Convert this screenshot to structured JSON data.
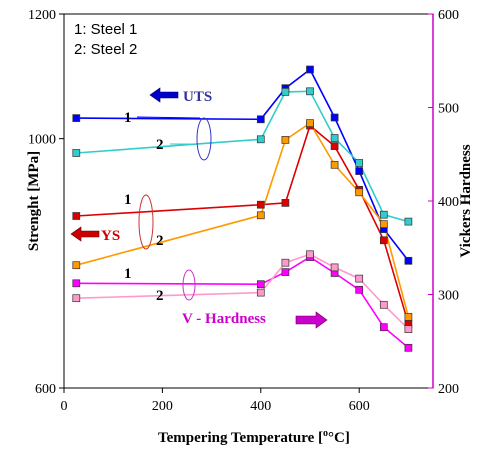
{
  "chart_data": {
    "type": "line",
    "xlabel": "Tempering Temperature [",
    "xlabel_unit": "°C]",
    "ylabel": "Strenght [MPa]",
    "y2label": "Vickers Hardness",
    "xlim": [
      0,
      750
    ],
    "ylim": [
      600,
      1200
    ],
    "y2lim": [
      200,
      600
    ],
    "xticks": [
      "0",
      "200",
      "400",
      "600"
    ],
    "yticks": [
      "600",
      "1000",
      "1200"
    ],
    "y2ticks": [
      "200",
      "300",
      "400",
      "500",
      "600"
    ],
    "legend": {
      "line1": "1: Steel 1",
      "line2": "2: Steel 2"
    },
    "annotations": {
      "uts": "UTS",
      "ys": "YS",
      "hardness": "V - Hardness",
      "uts_1": "1",
      "uts_2": "2",
      "ys_1": "1",
      "ys_2": "2",
      "hv_1": "1",
      "hv_2": "2"
    },
    "series": [
      {
        "key": "uts1",
        "name": "UTS Steel 1",
        "axis": "left",
        "color": "#0000ff",
        "marker_fill": "#0000ff",
        "x": [
          25,
          400,
          450,
          500,
          550,
          600,
          650,
          700
        ],
        "y": [
          1033,
          1031,
          1081,
          1111,
          1034,
          948,
          855,
          804
        ]
      },
      {
        "key": "uts2",
        "name": "UTS Steel 2",
        "axis": "left",
        "color": "#33cccc",
        "marker_fill": "#33cccc",
        "x": [
          25,
          400,
          450,
          500,
          550,
          600,
          650,
          700
        ],
        "y": [
          977,
          999,
          1075,
          1076,
          1001,
          961,
          878,
          867
        ]
      },
      {
        "key": "ys1",
        "name": "YS Steel 1",
        "axis": "left",
        "color": "#dd0000",
        "marker_fill": "#dd0000",
        "x": [
          25,
          400,
          450,
          500,
          550,
          600,
          650,
          700
        ],
        "y": [
          876,
          894,
          897,
          1021,
          988,
          918,
          837,
          703
        ]
      },
      {
        "key": "ys2",
        "name": "YS Steel 2",
        "axis": "left",
        "color": "#ff9900",
        "marker_fill": "#ff9900",
        "x": [
          25,
          400,
          450,
          500,
          550,
          600,
          650,
          700
        ],
        "y": [
          797,
          877,
          998,
          1025,
          958,
          914,
          863,
          714
        ]
      },
      {
        "key": "hv1",
        "name": "Hardness Steel 1",
        "axis": "right",
        "color": "#ff00ff",
        "marker_fill": "#ff00ff",
        "x": [
          25,
          400,
          450,
          500,
          550,
          600,
          650,
          700
        ],
        "y": [
          312,
          311,
          324,
          340,
          323,
          305,
          265,
          243
        ]
      },
      {
        "key": "hv2",
        "name": "Hardness Steel 2",
        "axis": "right",
        "color": "#ff99cc",
        "marker_fill": "#ff99cc",
        "x": [
          25,
          400,
          450,
          500,
          550,
          600,
          650,
          700
        ],
        "y": [
          296,
          302,
          334,
          343,
          329,
          317,
          289,
          263
        ]
      }
    ]
  }
}
